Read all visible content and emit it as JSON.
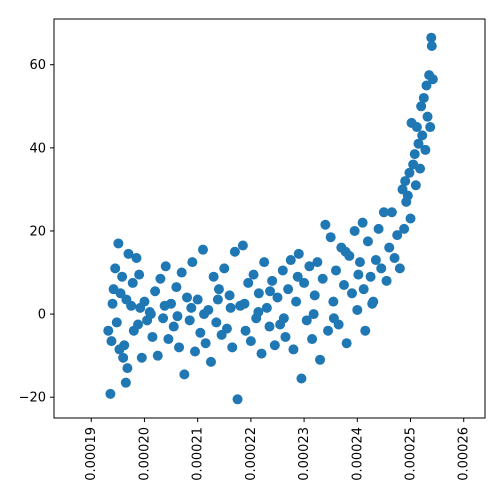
{
  "chart_data": {
    "type": "scatter",
    "title": "",
    "xlabel": "",
    "ylabel": "",
    "xlim": [
      0.000183,
      0.000264
    ],
    "ylim": [
      -25,
      71
    ],
    "grid": false,
    "legend": "none",
    "marker_color": "#1f77b4",
    "xticks": [
      {
        "value": 0.00019,
        "label": "0.00019"
      },
      {
        "value": 0.0002,
        "label": "0.00020"
      },
      {
        "value": 0.00021,
        "label": "0.00021"
      },
      {
        "value": 0.00022,
        "label": "0.00022"
      },
      {
        "value": 0.00023,
        "label": "0.00023"
      },
      {
        "value": 0.00024,
        "label": "0.00024"
      },
      {
        "value": 0.00025,
        "label": "0.00025"
      },
      {
        "value": 0.00026,
        "label": "0.00026"
      }
    ],
    "yticks": [
      {
        "value": -20,
        "label": "−20"
      },
      {
        "value": 0,
        "label": "0"
      },
      {
        "value": 20,
        "label": "20"
      },
      {
        "value": 40,
        "label": "40"
      },
      {
        "value": 60,
        "label": "60"
      }
    ],
    "series": [
      {
        "points": [
          [
            0.0001936,
            -19.2
          ],
          [
            0.0001945,
            11.0
          ],
          [
            0.000194,
            2.5
          ],
          [
            0.0001932,
            -4.0
          ],
          [
            0.0001951,
            17.0
          ],
          [
            0.0001938,
            -6.5
          ],
          [
            0.0001955,
            5.0
          ],
          [
            0.0001948,
            -2.0
          ],
          [
            0.000196,
            -10.5
          ],
          [
            0.0001965,
            -16.5
          ],
          [
            0.0001958,
            9.0
          ],
          [
            0.000197,
            14.5
          ],
          [
            0.0001962,
            -7.5
          ],
          [
            0.0001975,
            2.0
          ],
          [
            0.000198,
            -4.0
          ],
          [
            0.0001985,
            13.5
          ],
          [
            0.000199,
            9.5
          ],
          [
            0.0001995,
            -10.5
          ],
          [
            0.0002,
            3.0
          ],
          [
            0.0002005,
            -1.5
          ],
          [
            0.0001968,
            -13.0
          ],
          [
            0.0001942,
            6.0
          ],
          [
            0.0001953,
            -8.5
          ],
          [
            0.0001978,
            7.5
          ],
          [
            0.0001988,
            -2.5
          ],
          [
            0.000201,
            0.5
          ],
          [
            0.0002015,
            -5.5
          ],
          [
            0.000202,
            5.5
          ],
          [
            0.0002025,
            -10.0
          ],
          [
            0.000203,
            8.5
          ],
          [
            0.0002035,
            -1.0
          ],
          [
            0.000204,
            11.5
          ],
          [
            0.0002045,
            -6.0
          ],
          [
            0.000205,
            2.5
          ],
          [
            0.0002055,
            -3.0
          ],
          [
            0.000206,
            6.5
          ],
          [
            0.0002065,
            -8.0
          ],
          [
            0.000207,
            10.0
          ],
          [
            0.0002075,
            -14.5
          ],
          [
            0.000208,
            4.0
          ],
          [
            0.0002085,
            -1.5
          ],
          [
            0.000209,
            12.5
          ],
          [
            0.0002095,
            -9.0
          ],
          [
            0.00021,
            3.5
          ],
          [
            0.0002105,
            -4.5
          ],
          [
            0.000211,
            15.5
          ],
          [
            0.0002115,
            -7.0
          ],
          [
            0.000212,
            1.0
          ],
          [
            0.0002125,
            -11.5
          ],
          [
            0.000213,
            9.0
          ],
          [
            0.0002135,
            -2.0
          ],
          [
            0.000214,
            6.0
          ],
          [
            0.0002145,
            -5.0
          ],
          [
            0.000215,
            11.0
          ],
          [
            0.0002155,
            -3.5
          ],
          [
            0.000216,
            4.5
          ],
          [
            0.0002165,
            -8.0
          ],
          [
            0.000217,
            15.0
          ],
          [
            0.0002175,
            -20.5
          ],
          [
            0.000218,
            2.0
          ],
          [
            0.0002185,
            16.5
          ],
          [
            0.000219,
            -4.0
          ],
          [
            0.0002195,
            7.5
          ],
          [
            0.00022,
            -6.5
          ],
          [
            0.0002205,
            9.5
          ],
          [
            0.000221,
            -1.0
          ],
          [
            0.0002215,
            5.0
          ],
          [
            0.000222,
            -9.5
          ],
          [
            0.0002225,
            12.5
          ],
          [
            0.000223,
            1.5
          ],
          [
            0.0002235,
            -3.0
          ],
          [
            0.000224,
            8.0
          ],
          [
            0.0002245,
            -7.5
          ],
          [
            0.000225,
            4.0
          ],
          [
            0.0002255,
            -2.5
          ],
          [
            0.000226,
            10.5
          ],
          [
            0.0002265,
            -5.5
          ],
          [
            0.000227,
            6.0
          ],
          [
            0.0002275,
            13.0
          ],
          [
            0.000228,
            -8.5
          ],
          [
            0.0002285,
            3.0
          ],
          [
            0.000229,
            14.5
          ],
          [
            0.0002295,
            -15.5
          ],
          [
            0.00023,
            7.5
          ],
          [
            0.0002305,
            -1.5
          ],
          [
            0.000231,
            11.5
          ],
          [
            0.0002315,
            -6.0
          ],
          [
            0.000232,
            4.5
          ],
          [
            0.0002325,
            12.5
          ],
          [
            0.000233,
            -11.0
          ],
          [
            0.0002335,
            8.5
          ],
          [
            0.000234,
            21.5
          ],
          [
            0.0002345,
            -4.0
          ],
          [
            0.000235,
            18.5
          ],
          [
            0.0002355,
            3.0
          ],
          [
            0.000236,
            10.5
          ],
          [
            0.0002365,
            -2.5
          ],
          [
            0.000237,
            16.0
          ],
          [
            0.0002375,
            7.0
          ],
          [
            0.000238,
            -7.0
          ],
          [
            0.0002385,
            14.0
          ],
          [
            0.000239,
            5.0
          ],
          [
            0.0002395,
            20.0
          ],
          [
            0.00024,
            1.0
          ],
          [
            0.0002405,
            12.5
          ],
          [
            0.000241,
            22.0
          ],
          [
            0.0002415,
            -4.0
          ],
          [
            0.000242,
            17.5
          ],
          [
            0.0002425,
            9.0
          ],
          [
            0.000243,
            3.0
          ],
          [
            0.0002435,
            13.0
          ],
          [
            0.000244,
            20.5
          ],
          [
            0.0002445,
            11.0
          ],
          [
            0.000245,
            24.5
          ],
          [
            0.0002455,
            8.0
          ],
          [
            0.000246,
            16.0
          ],
          [
            0.0002465,
            24.5
          ],
          [
            0.000247,
            13.5
          ],
          [
            0.0002475,
            19.0
          ],
          [
            0.000248,
            11.0
          ],
          [
            0.0002485,
            30.0
          ],
          [
            0.0002488,
            20.5
          ],
          [
            0.000249,
            32.0
          ],
          [
            0.0002492,
            27.0
          ],
          [
            0.0002495,
            28.5
          ],
          [
            0.0002498,
            34.0
          ],
          [
            0.00025,
            23.0
          ],
          [
            0.0002502,
            46.0
          ],
          [
            0.0002505,
            36.0
          ],
          [
            0.0002508,
            38.5
          ],
          [
            0.000251,
            31.0
          ],
          [
            0.0002512,
            45.0
          ],
          [
            0.0002515,
            41.0
          ],
          [
            0.0002518,
            35.0
          ],
          [
            0.000252,
            50.0
          ],
          [
            0.0002522,
            43.0
          ],
          [
            0.0002525,
            52.0
          ],
          [
            0.0002528,
            39.5
          ],
          [
            0.000253,
            55.0
          ],
          [
            0.0002532,
            47.5
          ],
          [
            0.0002535,
            57.5
          ],
          [
            0.0002537,
            45.0
          ],
          [
            0.0002539,
            66.5
          ],
          [
            0.000254,
            64.5
          ],
          [
            0.0002542,
            56.5
          ],
          [
            0.0002412,
            6.0
          ],
          [
            0.0002378,
            15.0
          ],
          [
            0.0002356,
            -1.0
          ],
          [
            0.0002428,
            2.5
          ],
          [
            0.0002402,
            9.5
          ],
          [
            0.0002318,
            0.0
          ],
          [
            0.0002288,
            9.0
          ],
          [
            0.0002262,
            -1.0
          ],
          [
            0.0002236,
            5.5
          ],
          [
            0.0002214,
            0.5
          ],
          [
            0.0002188,
            2.5
          ],
          [
            0.0002162,
            1.5
          ],
          [
            0.0002138,
            3.5
          ],
          [
            0.0002112,
            0.0
          ],
          [
            0.0002088,
            1.5
          ],
          [
            0.0002062,
            -0.5
          ],
          [
            0.0002038,
            2.0
          ],
          [
            0.0002012,
            0.0
          ],
          [
            0.0001992,
            1.5
          ],
          [
            0.0001966,
            3.5
          ]
        ]
      }
    ]
  }
}
